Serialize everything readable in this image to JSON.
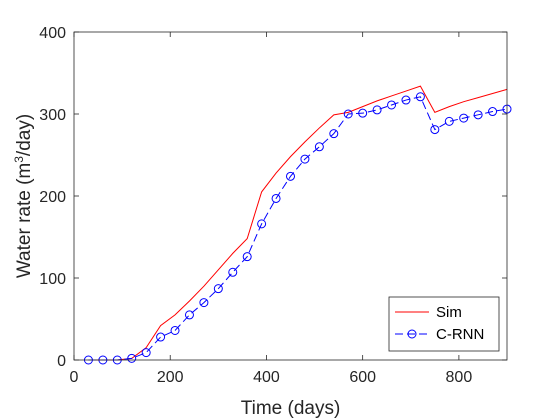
{
  "chart_data": {
    "type": "line",
    "xlabel": "Time (days)",
    "ylabel_main": "Water rate (m",
    "ylabel_sup": "3",
    "ylabel_tail": "/day)",
    "xlim": [
      0,
      900
    ],
    "ylim": [
      0,
      400
    ],
    "xticks": [
      0,
      200,
      400,
      600,
      800
    ],
    "yticks": [
      0,
      100,
      200,
      300,
      400
    ],
    "grid": false,
    "legend_placement": "bottom-right",
    "series": [
      {
        "name": "Sim",
        "color": "#ff0000",
        "style": "solid",
        "marker": "none",
        "x": [
          30,
          60,
          90,
          120,
          150,
          180,
          210,
          240,
          270,
          300,
          330,
          360,
          390,
          420,
          450,
          480,
          510,
          540,
          570,
          600,
          630,
          660,
          690,
          720,
          750,
          780,
          810,
          840,
          870,
          900
        ],
        "y": [
          0,
          0,
          0,
          2,
          15,
          42,
          55,
          72,
          90,
          110,
          130,
          148,
          205,
          228,
          248,
          266,
          283,
          299,
          302,
          309,
          316,
          322,
          328,
          334,
          302,
          309,
          315,
          320,
          325,
          330
        ]
      },
      {
        "name": "C-RNN",
        "color": "#0000ff",
        "style": "dashed",
        "marker": "circle",
        "x": [
          30,
          60,
          90,
          120,
          150,
          180,
          210,
          240,
          270,
          300,
          330,
          360,
          390,
          420,
          450,
          480,
          510,
          540,
          570,
          600,
          630,
          660,
          690,
          720,
          750,
          780,
          810,
          840,
          870,
          900
        ],
        "y": [
          0,
          0,
          0,
          2,
          9,
          28,
          36,
          55,
          70,
          87,
          107,
          126,
          166,
          197,
          224,
          245,
          260,
          276,
          300,
          301,
          305,
          311,
          317,
          321,
          281,
          291,
          295,
          299,
          303,
          306
        ]
      }
    ]
  }
}
